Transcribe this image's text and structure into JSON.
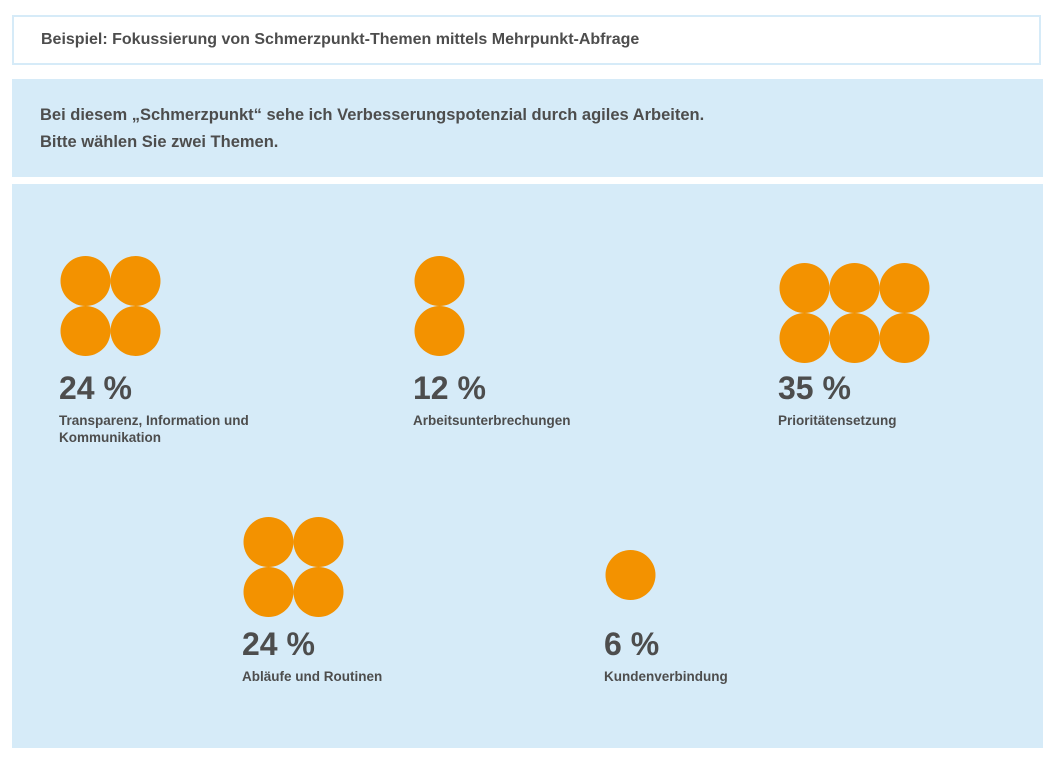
{
  "header": {
    "title": "Beispiel: Fokussierung von Schmerzpunkt-Themen mittels Mehrpunkt-Abfrage"
  },
  "question": {
    "line1": "Bei diesem „Schmerzpunkt“ sehe ich Verbesserungspotenzial durch agiles Arbeiten.",
    "line2": "Bitte wählen Sie zwei Themen."
  },
  "colors": {
    "dot": "#f39200",
    "panel": "#d6ebf8",
    "text": "#4d4d4d"
  },
  "chart_data": {
    "type": "dot-plot",
    "unit": "%",
    "items": [
      {
        "category": "Transparenz, Information und Kommunikation",
        "label_lines": [
          "Transparenz, Information und",
          "Kommunikation"
        ],
        "value": 24,
        "value_label": "24 %",
        "dots": 4
      },
      {
        "category": "Arbeitsunterbrechungen",
        "label_lines": [
          "Arbeitsunterbrechungen"
        ],
        "value": 12,
        "value_label": "12 %",
        "dots": 2
      },
      {
        "category": "Prioritätensetzung",
        "label_lines": [
          "Prioritätensetzung"
        ],
        "value": 35,
        "value_label": "35 %",
        "dots": 6
      },
      {
        "category": "Abläufe und Routinen",
        "label_lines": [
          "Abläufe und Routinen"
        ],
        "value": 24,
        "value_label": "24 %",
        "dots": 4
      },
      {
        "category": "Kundenverbindung",
        "label_lines": [
          "Kundenverbindung"
        ],
        "value": 6,
        "value_label": "6 %",
        "dots": 1
      }
    ]
  }
}
